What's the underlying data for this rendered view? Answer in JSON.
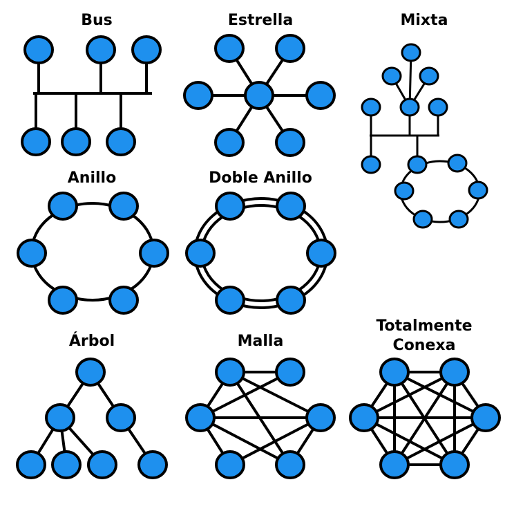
{
  "colors": {
    "node_fill": "#1e90ee",
    "stroke": "#000000",
    "background": "#ffffff"
  },
  "topologies": [
    {
      "id": "bus",
      "title": "Bus",
      "nodes": 6
    },
    {
      "id": "star",
      "title": "Estrella",
      "nodes": 7
    },
    {
      "id": "mixed",
      "title": "Mixta",
      "nodes": 13
    },
    {
      "id": "ring",
      "title": "Anillo",
      "nodes": 6
    },
    {
      "id": "double-ring",
      "title": "Doble Anillo",
      "nodes": 6
    },
    {
      "id": "tree",
      "title": "Árbol",
      "nodes": 7
    },
    {
      "id": "mesh",
      "title": "Malla",
      "nodes": 6
    },
    {
      "id": "fully-connected",
      "title_lines": [
        "Totalmente",
        "Conexa"
      ],
      "nodes": 6
    }
  ]
}
